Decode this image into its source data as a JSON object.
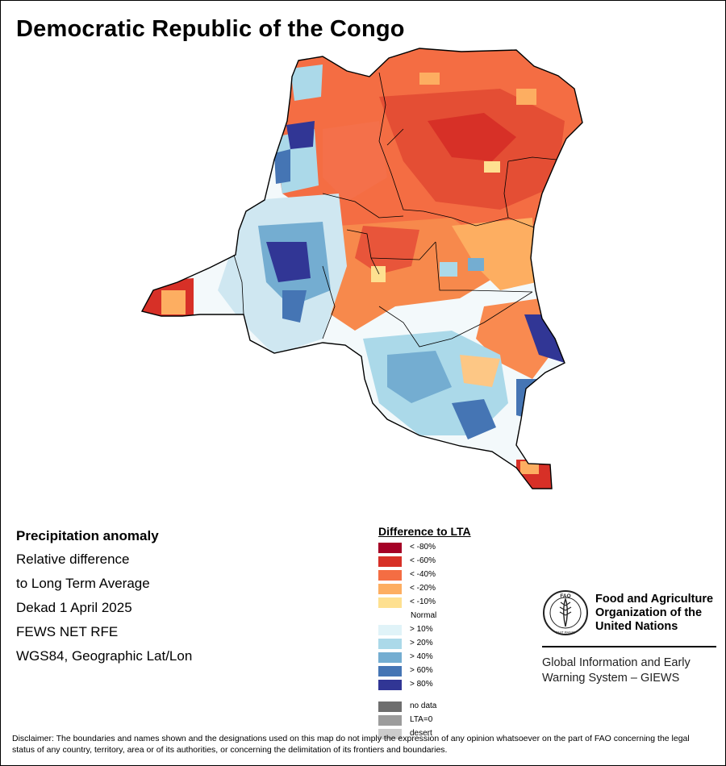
{
  "title": "Democratic Republic of the Congo",
  "info": {
    "heading": "Precipitation anomaly",
    "lines": [
      "Relative difference",
      "to Long Term Average",
      "Dekad 1 April 2025",
      "FEWS NET RFE",
      "WGS84, Geographic Lat/Lon"
    ]
  },
  "legend": {
    "title": "Difference to LTA",
    "items": [
      {
        "label": "< -80%",
        "color": "#a50026"
      },
      {
        "label": "< -60%",
        "color": "#d73027"
      },
      {
        "label": "< -40%",
        "color": "#f46d43"
      },
      {
        "label": "< -20%",
        "color": "#fdae61"
      },
      {
        "label": "< -10%",
        "color": "#fee090"
      },
      {
        "label": "Normal",
        "color": "#ffffff"
      },
      {
        "label": "> 10%",
        "color": "#e0f3f8"
      },
      {
        "label": "> 20%",
        "color": "#abd9e9"
      },
      {
        "label": "> 40%",
        "color": "#74add1"
      },
      {
        "label": "> 60%",
        "color": "#4575b4"
      },
      {
        "label": "> 80%",
        "color": "#313695"
      }
    ],
    "extra": [
      {
        "label": "no data",
        "color": "#6e6e6e"
      },
      {
        "label": "LTA=0",
        "color": "#9c9c9c"
      },
      {
        "label": "desert",
        "color": "#cccccc"
      }
    ]
  },
  "fao": {
    "name_lines": [
      "Food and Agriculture",
      "Organization of the",
      "United Nations"
    ],
    "logo_text": "FAO",
    "motto": "FIAT PANIS",
    "giews_lines": [
      "Global Information and Early",
      "Warning System – GIEWS"
    ]
  },
  "disclaimer": "Disclaimer: The boundaries and names shown and the designations used on this map do not imply the expression of any opinion whatsoever on the part of FAO concerning the legal status of any country, territory, area or of its authorities, or concerning the delimitation of its frontiers and boundaries."
}
